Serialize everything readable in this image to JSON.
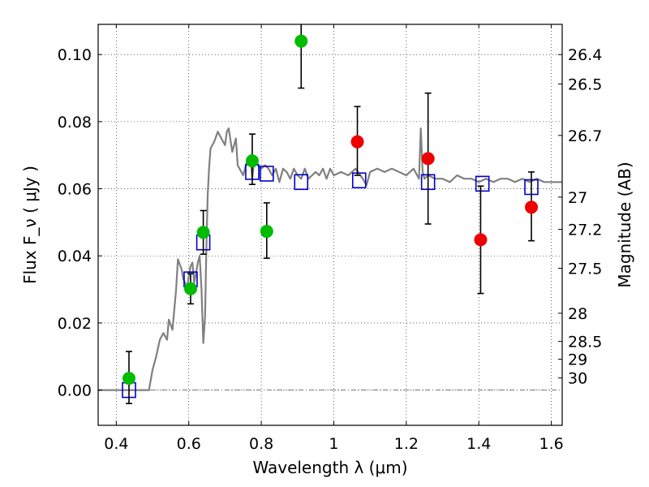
{
  "chart_data": {
    "type": "scatter",
    "xlabel": "Wavelength  λ (μm)",
    "ylabel": "Flux  F_ν  ( μJy )",
    "ylabel_right": "Magnitude (AB)",
    "xlim": [
      0.35,
      1.63
    ],
    "ylim": [
      -0.0105,
      0.109
    ],
    "grid": true,
    "x_ticks": [
      0.4,
      0.6,
      0.8,
      1.0,
      1.2,
      1.4,
      1.6
    ],
    "x_tick_labels": [
      "0.4",
      "0.6",
      "0.8",
      "1",
      "1.2",
      "1.4",
      "1.6"
    ],
    "y_ticks": [
      0.0,
      0.02,
      0.04,
      0.06,
      0.08,
      0.1
    ],
    "y_tick_labels": [
      "0.00",
      "0.02",
      "0.04",
      "0.06",
      "0.08",
      "0.10"
    ],
    "right_ticks": [
      {
        "flux": 0.1,
        "label": "26.4"
      },
      {
        "flux": 0.0912,
        "label": "26.5"
      },
      {
        "flux": 0.0759,
        "label": "26.7"
      },
      {
        "flux": 0.0575,
        "label": "27"
      },
      {
        "flux": 0.0479,
        "label": "27.2"
      },
      {
        "flux": 0.0363,
        "label": "27.5"
      },
      {
        "flux": 0.0229,
        "label": "28"
      },
      {
        "flux": 0.0145,
        "label": "28.5"
      },
      {
        "flux": 0.0092,
        "label": "29"
      },
      {
        "flux": 0.0036,
        "label": "30"
      }
    ],
    "series": [
      {
        "kind": "line",
        "color": "#808080",
        "x": [
          0.35,
          0.4,
          0.45,
          0.475,
          0.49,
          0.5,
          0.51,
          0.52,
          0.53,
          0.54,
          0.545,
          0.555,
          0.565,
          0.57,
          0.58,
          0.585,
          0.59,
          0.595,
          0.6,
          0.605,
          0.61,
          0.615,
          0.62,
          0.625,
          0.63,
          0.635,
          0.64,
          0.645,
          0.648,
          0.652,
          0.656,
          0.66,
          0.67,
          0.68,
          0.69,
          0.7,
          0.705,
          0.71,
          0.72,
          0.73,
          0.735,
          0.74,
          0.75,
          0.76,
          0.77,
          0.775,
          0.78,
          0.79,
          0.8,
          0.81,
          0.82,
          0.83,
          0.84,
          0.85,
          0.86,
          0.87,
          0.88,
          0.89,
          0.9,
          0.91,
          0.92,
          0.93,
          0.94,
          0.95,
          0.96,
          0.97,
          0.98,
          0.99,
          1.0,
          1.02,
          1.04,
          1.06,
          1.08,
          1.09,
          1.1,
          1.12,
          1.14,
          1.16,
          1.18,
          1.2,
          1.22,
          1.235,
          1.24,
          1.245,
          1.25,
          1.26,
          1.28,
          1.3,
          1.32,
          1.34,
          1.36,
          1.38,
          1.4,
          1.42,
          1.44,
          1.46,
          1.48,
          1.5,
          1.52,
          1.54,
          1.56,
          1.58,
          1.6,
          1.63
        ],
        "y": [
          0.0,
          0.0,
          0.0,
          0.0,
          0.0,
          0.006,
          0.01,
          0.015,
          0.017,
          0.015,
          0.021,
          0.018,
          0.03,
          0.039,
          0.036,
          0.033,
          0.032,
          0.03,
          0.034,
          0.037,
          0.038,
          0.032,
          0.035,
          0.038,
          0.04,
          0.03,
          0.014,
          0.022,
          0.04,
          0.058,
          0.066,
          0.072,
          0.074,
          0.077,
          0.075,
          0.073,
          0.077,
          0.078,
          0.071,
          0.075,
          0.067,
          0.066,
          0.064,
          0.068,
          0.07,
          0.063,
          0.068,
          0.067,
          0.066,
          0.067,
          0.066,
          0.064,
          0.066,
          0.062,
          0.066,
          0.065,
          0.063,
          0.066,
          0.064,
          0.063,
          0.066,
          0.063,
          0.064,
          0.065,
          0.064,
          0.066,
          0.063,
          0.066,
          0.064,
          0.065,
          0.064,
          0.066,
          0.063,
          0.061,
          0.065,
          0.066,
          0.065,
          0.066,
          0.065,
          0.064,
          0.066,
          0.063,
          0.078,
          0.065,
          0.063,
          0.064,
          0.063,
          0.063,
          0.062,
          0.064,
          0.063,
          0.063,
          0.062,
          0.063,
          0.062,
          0.063,
          0.063,
          0.062,
          0.063,
          0.062,
          0.063,
          0.062,
          0.062,
          0.062
        ]
      },
      {
        "kind": "open-square",
        "color": "#0000cc",
        "x": [
          0.435,
          0.605,
          0.64,
          0.775,
          0.815,
          0.91,
          1.07,
          1.26,
          1.41,
          1.545
        ],
        "y": [
          0.0,
          0.033,
          0.044,
          0.065,
          0.0645,
          0.062,
          0.0625,
          0.062,
          0.0615,
          0.0605
        ]
      },
      {
        "kind": "filled-circle",
        "color": "#00bb00",
        "x": [
          0.435,
          0.605,
          0.64,
          0.775,
          0.815,
          0.91
        ],
        "y": [
          0.0035,
          0.0302,
          0.047,
          0.0683,
          0.0473,
          0.104
        ],
        "err_low": [
          0.0075,
          0.0045,
          0.0065,
          0.007,
          0.008,
          0.014
        ],
        "err_high": [
          0.008,
          0.0045,
          0.0065,
          0.008,
          0.0085,
          0.015
        ]
      },
      {
        "kind": "filled-circle",
        "color": "#ee0000",
        "x": [
          1.065,
          1.26,
          1.405,
          1.545
        ],
        "y": [
          0.074,
          0.069,
          0.0448,
          0.0545
        ],
        "err_low": [
          0.01,
          0.0195,
          0.016,
          0.01
        ],
        "err_high": [
          0.0105,
          0.0195,
          0.016,
          0.0105
        ]
      }
    ]
  }
}
